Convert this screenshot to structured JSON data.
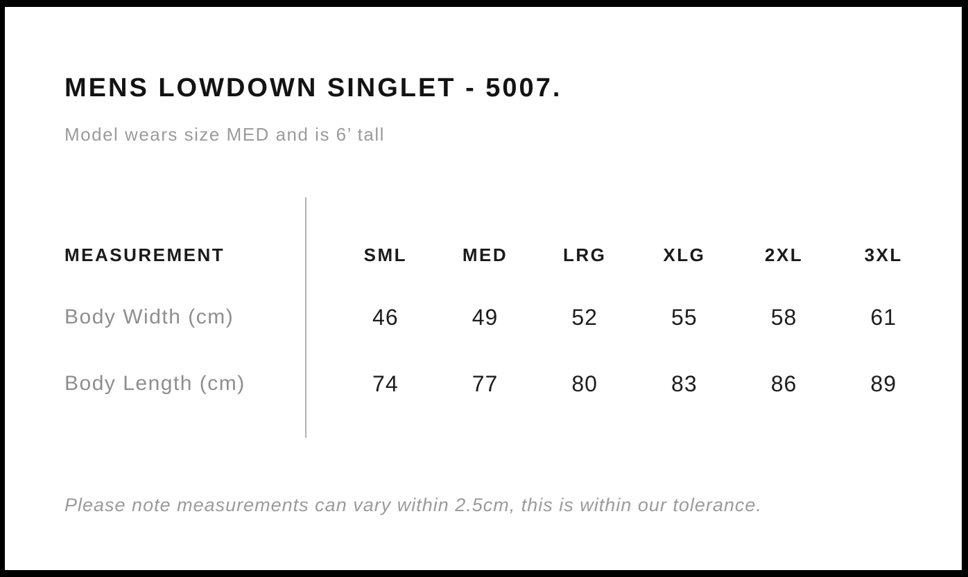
{
  "title": "MENS LOWDOWN SINGLET - 5007.",
  "subtitle": "Model wears size MED and is 6’ tall",
  "table": {
    "measurement_header": "MEASUREMENT",
    "size_headers": [
      "SML",
      "MED",
      "LRG",
      "XLG",
      "2XL",
      "3XL"
    ],
    "rows": [
      {
        "label": "Body Width (cm)",
        "values": [
          "46",
          "49",
          "52",
          "55",
          "58",
          "61"
        ]
      },
      {
        "label": "Body Length (cm)",
        "values": [
          "74",
          "77",
          "80",
          "83",
          "86",
          "89"
        ]
      }
    ]
  },
  "note": "Please note measurements can vary within 2.5cm, this is within our tolerance.",
  "colors": {
    "frame": "#000000",
    "page_background": "#ffffff",
    "heading_text": "#131313",
    "table_header_text": "#1a1a1a",
    "value_text": "#1d1d1d",
    "muted_text": "#9b9b9b",
    "row_label_text": "#8e8e8e",
    "divider": "#b0b0b0"
  }
}
